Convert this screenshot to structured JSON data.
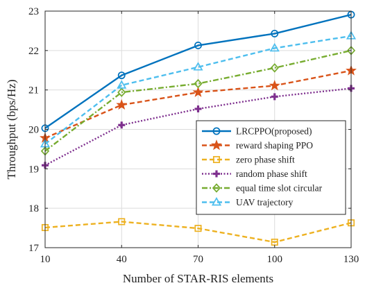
{
  "chart_data": {
    "type": "line",
    "xlabel": "Number of STAR-RIS elements",
    "ylabel": "Throughput (bps/Hz)",
    "x": [
      10,
      40,
      70,
      100,
      130
    ],
    "xticks": [
      "10",
      "40",
      "70",
      "100",
      "130"
    ],
    "yticks": [
      "17",
      "18",
      "19",
      "20",
      "21",
      "22",
      "23"
    ],
    "xlim": [
      10,
      130
    ],
    "ylim": [
      17,
      23
    ],
    "grid": true,
    "legend_position": "lower-right",
    "series": [
      {
        "name": "LRCPPO(proposed)",
        "values": [
          20.03,
          21.37,
          22.13,
          22.43,
          22.91
        ],
        "color": "#0072BD",
        "dash": "solid",
        "marker": "circle"
      },
      {
        "name": "reward shaping PPO",
        "values": [
          19.78,
          20.62,
          20.94,
          21.11,
          21.49
        ],
        "color": "#D95319",
        "dash": "dashed",
        "marker": "star"
      },
      {
        "name": "zero phase shift",
        "values": [
          17.51,
          17.66,
          17.49,
          17.14,
          17.63
        ],
        "color": "#EDB120",
        "dash": "dashed",
        "marker": "square"
      },
      {
        "name": "random phase shift",
        "values": [
          19.09,
          20.11,
          20.52,
          20.83,
          21.04
        ],
        "color": "#7E2F8E",
        "dash": "dotted",
        "marker": "plus"
      },
      {
        "name": "equal time slot circular",
        "values": [
          19.45,
          20.94,
          21.16,
          21.56,
          22.0
        ],
        "color": "#77AC30",
        "dash": "dashdot",
        "marker": "diamond"
      },
      {
        "name": "UAV trajectory",
        "values": [
          19.63,
          21.12,
          21.58,
          22.06,
          22.37
        ],
        "color": "#4DBEEE",
        "dash": "dashed",
        "marker": "triangle"
      }
    ]
  }
}
